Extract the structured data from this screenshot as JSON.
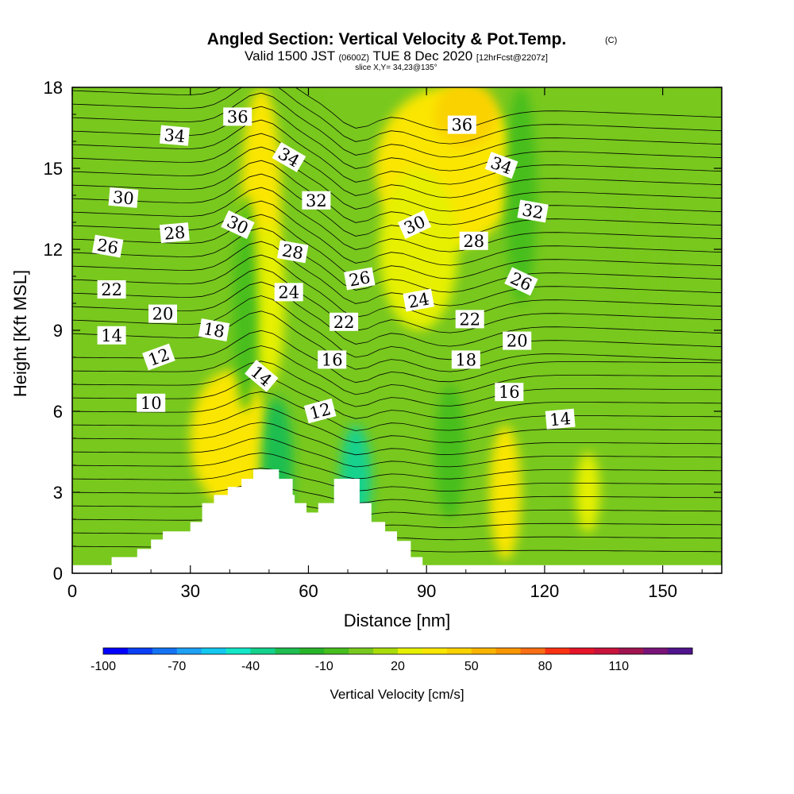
{
  "title": {
    "line1": "Angled Section: Vertical Velocity & Pot.Temp.",
    "copyright": "(C)",
    "line2_a": "Valid 1500 JST",
    "line2_b": "(0600Z)",
    "line2_c": "TUE 8 Dec 2020",
    "line2_d": "[12hrFcst@2207z]",
    "line3": "slice X,Y= 34,23@135°"
  },
  "colors": {
    "bands": [
      "#0000ff",
      "#0a3ff5",
      "#1473f5",
      "#1ea0f5",
      "#14c8f0",
      "#14e6c8",
      "#14d28c",
      "#1ebe50",
      "#28b428",
      "#46be1e",
      "#78c81e",
      "#aadc0a",
      "#e6f000",
      "#fae600",
      "#fad200",
      "#fab400",
      "#fa9600",
      "#fa6e14",
      "#fa3214",
      "#e61428",
      "#c8143c",
      "#a01450",
      "#781478",
      "#50148c"
    ],
    "ground": "#ffffff"
  },
  "chart_data": {
    "type": "heatmap",
    "title": "Angled Section: Vertical Velocity & Pot.Temp.",
    "xlabel": "Distance [nm]",
    "ylabel": "Height [Kft MSL]",
    "xlim": [
      0,
      165
    ],
    "ylim": [
      0,
      18
    ],
    "xticks": [
      0,
      30,
      60,
      90,
      120,
      150
    ],
    "yticks": [
      0,
      3,
      6,
      9,
      12,
      15,
      18
    ],
    "colorbar": {
      "label": "Vertical Velocity [cm/s]",
      "min": -100,
      "max": 140,
      "step": 10,
      "tick_values": [
        -100,
        -70,
        -40,
        -10,
        20,
        50,
        80,
        110
      ]
    },
    "vertical_velocity_features": [
      {
        "x": 40,
        "y": 5,
        "w": 10,
        "h": 2.5,
        "value": 30
      },
      {
        "x": 48,
        "y": 14,
        "w": 5,
        "h": 4,
        "value": 30
      },
      {
        "x": 50,
        "y": 10,
        "w": 4,
        "h": 3,
        "value": 20
      },
      {
        "x": 95,
        "y": 15,
        "w": 18,
        "h": 3,
        "value": 30
      },
      {
        "x": 100,
        "y": 17,
        "w": 8,
        "h": 1.2,
        "value": 40
      },
      {
        "x": 88,
        "y": 12,
        "w": 10,
        "h": 3,
        "value": 20
      },
      {
        "x": 110,
        "y": 3,
        "w": 4,
        "h": 2.5,
        "value": 35
      },
      {
        "x": 131,
        "y": 3,
        "w": 3,
        "h": 1.5,
        "value": 20
      },
      {
        "x": 52,
        "y": 4,
        "w": 4,
        "h": 2.5,
        "value": -30
      },
      {
        "x": 72,
        "y": 3.5,
        "w": 4,
        "h": 2,
        "value": -40
      },
      {
        "x": 44,
        "y": 10,
        "w": 3,
        "h": 4,
        "value": -10
      },
      {
        "x": 114,
        "y": 14,
        "w": 4,
        "h": 4,
        "value": -10
      },
      {
        "x": 60,
        "y": 16,
        "w": 3,
        "h": 2,
        "value": 0
      },
      {
        "x": 96,
        "y": 4.5,
        "w": 4,
        "h": 2.5,
        "value": -10
      },
      {
        "x": 145,
        "y": 12,
        "w": 5,
        "h": 4,
        "value": 0
      }
    ],
    "potential_temperature_labels": [
      {
        "text": "10",
        "x": 20,
        "y": 6.3,
        "angle": 0
      },
      {
        "text": "12",
        "x": 22,
        "y": 8.0,
        "angle": -20
      },
      {
        "text": "14",
        "x": 10,
        "y": 8.8,
        "angle": 0
      },
      {
        "text": "20",
        "x": 23,
        "y": 9.6,
        "angle": 0
      },
      {
        "text": "22",
        "x": 10,
        "y": 10.5,
        "angle": 0
      },
      {
        "text": "26",
        "x": 9,
        "y": 12.1,
        "angle": 10
      },
      {
        "text": "30",
        "x": 13,
        "y": 13.9,
        "angle": 5
      },
      {
        "text": "34",
        "x": 26,
        "y": 16.2,
        "angle": 5
      },
      {
        "text": "28",
        "x": 26,
        "y": 12.6,
        "angle": -5
      },
      {
        "text": "18",
        "x": 36,
        "y": 9.0,
        "angle": 10
      },
      {
        "text": "36",
        "x": 42,
        "y": 16.9,
        "angle": 0
      },
      {
        "text": "30",
        "x": 42,
        "y": 12.9,
        "angle": 25
      },
      {
        "text": "14",
        "x": 48,
        "y": 7.3,
        "angle": 40
      },
      {
        "text": "34",
        "x": 55,
        "y": 15.4,
        "angle": 30
      },
      {
        "text": "32",
        "x": 62,
        "y": 13.8,
        "angle": 0
      },
      {
        "text": "28",
        "x": 56,
        "y": 11.9,
        "angle": 10
      },
      {
        "text": "24",
        "x": 55,
        "y": 10.4,
        "angle": 0
      },
      {
        "text": "22",
        "x": 69,
        "y": 9.3,
        "angle": 0
      },
      {
        "text": "16",
        "x": 66,
        "y": 7.9,
        "angle": 0
      },
      {
        "text": "12",
        "x": 63,
        "y": 6.0,
        "angle": -15
      },
      {
        "text": "26",
        "x": 73,
        "y": 10.9,
        "angle": -10
      },
      {
        "text": "30",
        "x": 87,
        "y": 12.9,
        "angle": -25
      },
      {
        "text": "24",
        "x": 88,
        "y": 10.1,
        "angle": -10
      },
      {
        "text": "36",
        "x": 99,
        "y": 16.6,
        "angle": 0
      },
      {
        "text": "28",
        "x": 102,
        "y": 12.3,
        "angle": 0
      },
      {
        "text": "22",
        "x": 101,
        "y": 9.4,
        "angle": 0
      },
      {
        "text": "18",
        "x": 100,
        "y": 7.9,
        "angle": 0
      },
      {
        "text": "34",
        "x": 109,
        "y": 15.1,
        "angle": 20
      },
      {
        "text": "32",
        "x": 117,
        "y": 13.4,
        "angle": 10
      },
      {
        "text": "26",
        "x": 114,
        "y": 10.8,
        "angle": 25
      },
      {
        "text": "20",
        "x": 113,
        "y": 8.6,
        "angle": 0
      },
      {
        "text": "16",
        "x": 111,
        "y": 6.7,
        "angle": 0
      },
      {
        "text": "14",
        "x": 124,
        "y": 5.7,
        "angle": -5
      }
    ],
    "terrain_profile": [
      {
        "x": 0,
        "y": 0.3
      },
      {
        "x": 10,
        "y": 0.3
      },
      {
        "x": 10,
        "y": 0.6
      },
      {
        "x": 16.5,
        "y": 0.6
      },
      {
        "x": 16.5,
        "y": 0.9
      },
      {
        "x": 20,
        "y": 0.9
      },
      {
        "x": 20,
        "y": 1.25
      },
      {
        "x": 23,
        "y": 1.25
      },
      {
        "x": 23,
        "y": 1.55
      },
      {
        "x": 30,
        "y": 1.55
      },
      {
        "x": 30,
        "y": 1.9
      },
      {
        "x": 33,
        "y": 1.9
      },
      {
        "x": 33,
        "y": 2.6
      },
      {
        "x": 36,
        "y": 2.6
      },
      {
        "x": 36,
        "y": 2.9
      },
      {
        "x": 39.5,
        "y": 2.9
      },
      {
        "x": 39.5,
        "y": 3.2
      },
      {
        "x": 43,
        "y": 3.2
      },
      {
        "x": 43,
        "y": 3.5
      },
      {
        "x": 46,
        "y": 3.5
      },
      {
        "x": 46,
        "y": 3.85
      },
      {
        "x": 52.5,
        "y": 3.85
      },
      {
        "x": 52.5,
        "y": 3.5
      },
      {
        "x": 56,
        "y": 3.5
      },
      {
        "x": 56,
        "y": 2.9
      },
      {
        "x": 56.5,
        "y": 2.9
      },
      {
        "x": 56.5,
        "y": 2.6
      },
      {
        "x": 59.5,
        "y": 2.6
      },
      {
        "x": 59.5,
        "y": 2.25
      },
      {
        "x": 62.5,
        "y": 2.25
      },
      {
        "x": 62.5,
        "y": 2.6
      },
      {
        "x": 66.5,
        "y": 2.6
      },
      {
        "x": 66.5,
        "y": 3.5
      },
      {
        "x": 73,
        "y": 3.5
      },
      {
        "x": 73,
        "y": 2.6
      },
      {
        "x": 76,
        "y": 2.6
      },
      {
        "x": 76,
        "y": 1.9
      },
      {
        "x": 79.5,
        "y": 1.9
      },
      {
        "x": 79.5,
        "y": 1.55
      },
      {
        "x": 82.5,
        "y": 1.55
      },
      {
        "x": 82.5,
        "y": 1.2
      },
      {
        "x": 86,
        "y": 1.2
      },
      {
        "x": 86,
        "y": 0.6
      },
      {
        "x": 89,
        "y": 0.6
      },
      {
        "x": 89,
        "y": 0.3
      },
      {
        "x": 165,
        "y": 0.3
      }
    ]
  }
}
